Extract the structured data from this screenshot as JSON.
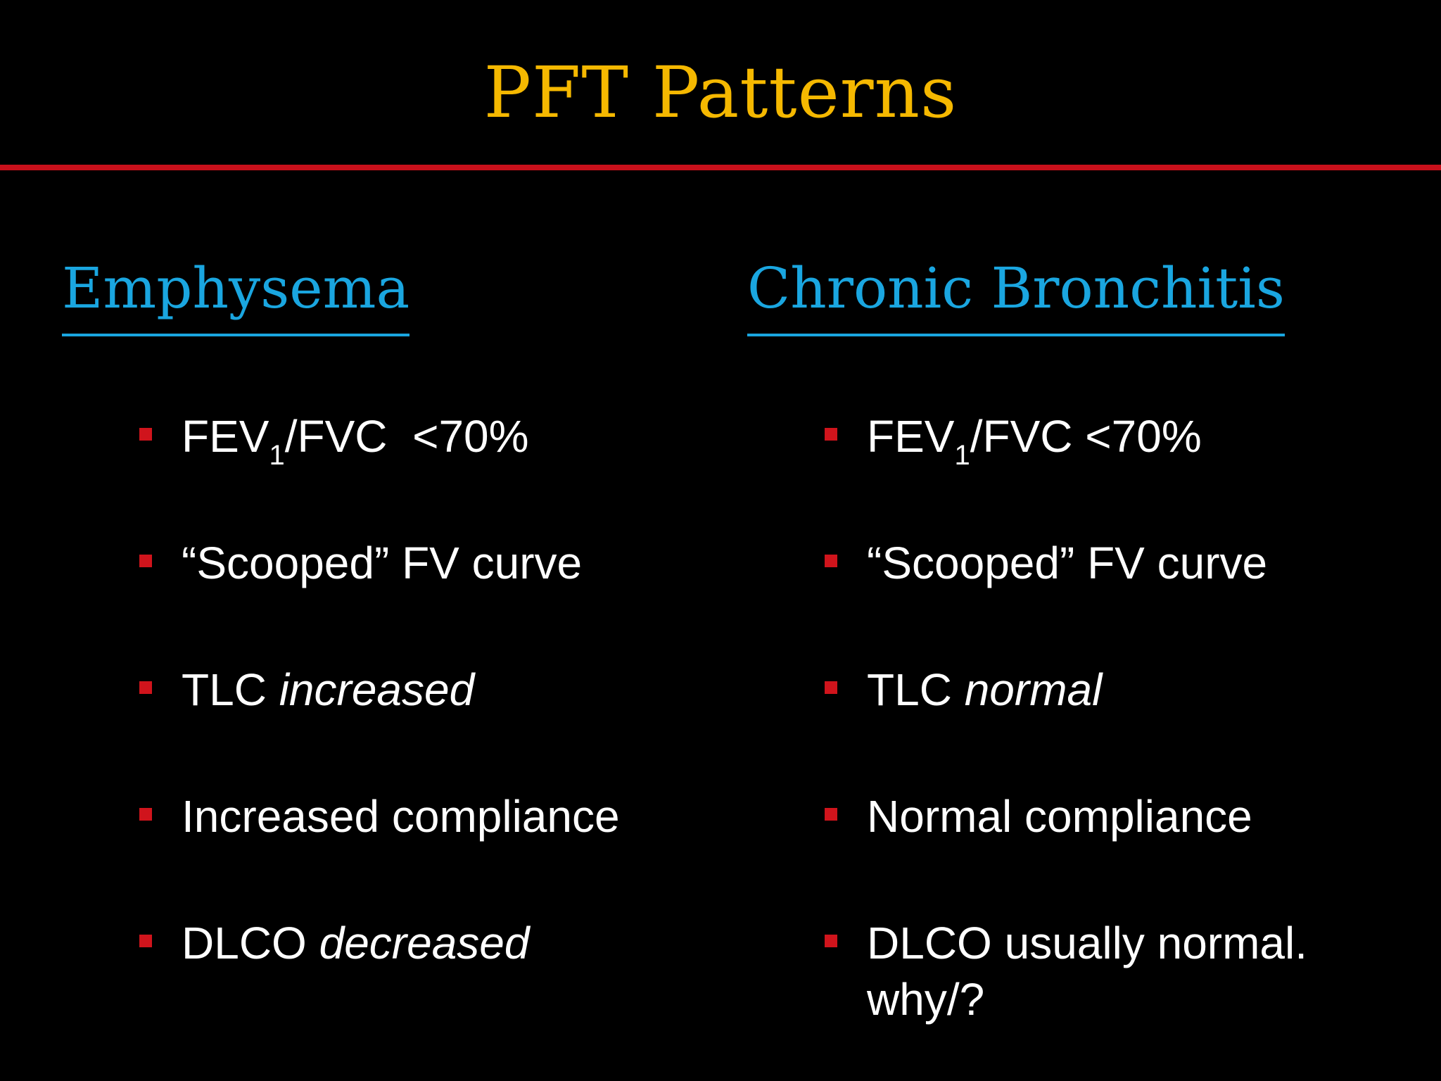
{
  "slide": {
    "title": "PFT Patterns",
    "colors": {
      "background": "#000000",
      "title": "#f5b800",
      "divider": "#c8101b",
      "heading": "#1aa6e0",
      "bullet_marker": "#d0141c",
      "text": "#ffffff"
    }
  },
  "left": {
    "heading": "Emphysema",
    "fev_pre": "FEV",
    "fev_sub": "1",
    "fev_post": "/FVC  <70%",
    "scooped": "“Scooped” FV curve",
    "tlc_label": "TLC ",
    "tlc_value": "increased",
    "compliance": "Increased compliance",
    "dlco_label": "DLCO ",
    "dlco_value": "decreased"
  },
  "right": {
    "heading": "Chronic Bronchitis",
    "fev_pre": "FEV",
    "fev_sub": "1",
    "fev_post": "/FVC <70%",
    "scooped": "“Scooped” FV curve",
    "tlc_label": "TLC ",
    "tlc_value": "normal",
    "compliance": "Normal compliance",
    "dlco_text": "DLCO usually normal. why/?"
  }
}
